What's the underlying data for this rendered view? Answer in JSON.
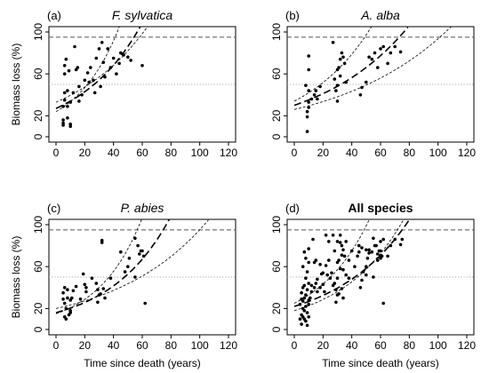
{
  "chart_data": [
    {
      "type": "scatter",
      "panel_label": "(a)",
      "title": "F. sylvatica",
      "title_style": "italic",
      "xlabel": "",
      "ylabel": "Biomass loss (%)",
      "xlim": [
        0,
        120
      ],
      "ylim": [
        0,
        100
      ],
      "xticks": [
        "0",
        "20",
        "40",
        "60",
        "80",
        "100",
        "120"
      ],
      "yticks": [
        "0",
        "20",
        "60",
        "100"
      ],
      "ytick_values": [
        0,
        20,
        60,
        100
      ],
      "reference_lines": [
        {
          "y": 95,
          "style": "dashed"
        },
        {
          "y": 50,
          "style": "dotted"
        }
      ],
      "curves": [
        {
          "style": "short-dashed",
          "a": 33,
          "b": 0.0182
        },
        {
          "style": "long-dashed",
          "a": 27,
          "b": 0.0232
        },
        {
          "style": "short-dashed",
          "a": 24,
          "b": 0.0335
        }
      ],
      "points": [
        [
          5,
          29
        ],
        [
          5,
          16
        ],
        [
          5,
          13
        ],
        [
          5,
          11
        ],
        [
          6,
          35
        ],
        [
          6,
          42
        ],
        [
          6,
          60
        ],
        [
          6,
          68
        ],
        [
          7,
          74
        ],
        [
          8,
          44
        ],
        [
          8,
          29
        ],
        [
          8,
          18
        ],
        [
          9,
          63
        ],
        [
          10,
          12
        ],
        [
          10,
          10
        ],
        [
          10,
          33
        ],
        [
          12,
          42
        ],
        [
          13,
          86
        ],
        [
          14,
          64
        ],
        [
          15,
          66
        ],
        [
          16,
          48
        ],
        [
          16,
          34
        ],
        [
          18,
          40
        ],
        [
          20,
          54
        ],
        [
          22,
          61
        ],
        [
          23,
          52
        ],
        [
          24,
          66
        ],
        [
          26,
          54
        ],
        [
          27,
          42
        ],
        [
          28,
          75
        ],
        [
          30,
          84
        ],
        [
          31,
          48
        ],
        [
          32,
          90
        ],
        [
          33,
          71
        ],
        [
          34,
          57
        ],
        [
          36,
          84
        ],
        [
          38,
          66
        ],
        [
          40,
          75
        ],
        [
          42,
          60
        ],
        [
          44,
          70
        ],
        [
          45,
          80
        ],
        [
          47,
          78
        ],
        [
          50,
          76
        ],
        [
          52,
          73
        ],
        [
          60,
          68
        ]
      ]
    },
    {
      "type": "scatter",
      "panel_label": "(b)",
      "title": "A. alba",
      "title_style": "italic",
      "xlabel": "",
      "ylabel": "",
      "xlim": [
        0,
        120
      ],
      "ylim": [
        0,
        100
      ],
      "xticks": [
        "0",
        "20",
        "40",
        "60",
        "80",
        "100",
        "120"
      ],
      "yticks": [
        "0",
        "20",
        "60",
        "100"
      ],
      "ytick_values": [
        0,
        20,
        60,
        100
      ],
      "reference_lines": [
        {
          "y": 95,
          "style": "dashed"
        },
        {
          "y": 50,
          "style": "dotted"
        }
      ],
      "curves": [
        {
          "style": "short-dashed",
          "a": 26,
          "b": 0.0128
        },
        {
          "style": "long-dashed",
          "a": 30,
          "b": 0.0158
        },
        {
          "style": "short-dashed",
          "a": 34,
          "b": 0.021
        }
      ],
      "points": [
        [
          8,
          49
        ],
        [
          9,
          5
        ],
        [
          9,
          19
        ],
        [
          9,
          24
        ],
        [
          10,
          28
        ],
        [
          10,
          33
        ],
        [
          10,
          44
        ],
        [
          10,
          64
        ],
        [
          10,
          77
        ],
        [
          12,
          36
        ],
        [
          14,
          40
        ],
        [
          15,
          44
        ],
        [
          16,
          36
        ],
        [
          18,
          48
        ],
        [
          27,
          90
        ],
        [
          28,
          55
        ],
        [
          29,
          44
        ],
        [
          30,
          49
        ],
        [
          30,
          34
        ],
        [
          30,
          64
        ],
        [
          31,
          66
        ],
        [
          32,
          58
        ],
        [
          32,
          74
        ],
        [
          33,
          80
        ],
        [
          34,
          76
        ],
        [
          35,
          70
        ],
        [
          36,
          52
        ],
        [
          46,
          40
        ],
        [
          47,
          47
        ],
        [
          50,
          52
        ],
        [
          52,
          76
        ],
        [
          54,
          74
        ],
        [
          56,
          80
        ],
        [
          58,
          66
        ],
        [
          60,
          84
        ],
        [
          62,
          86
        ],
        [
          65,
          70
        ],
        [
          67,
          80
        ],
        [
          70,
          86
        ],
        [
          74,
          81
        ]
      ]
    },
    {
      "type": "scatter",
      "panel_label": "(c)",
      "title": "P. abies",
      "title_style": "italic",
      "xlabel": "Time since death (years)",
      "ylabel": "Biomass loss (%)",
      "xlim": [
        0,
        120
      ],
      "ylim": [
        0,
        100
      ],
      "xticks": [
        "0",
        "20",
        "40",
        "60",
        "80",
        "100",
        "120"
      ],
      "yticks": [
        "0",
        "20",
        "60",
        "100"
      ],
      "ytick_values": [
        0,
        20,
        60,
        100
      ],
      "reference_lines": [
        {
          "y": 95,
          "style": "dashed"
        },
        {
          "y": 50,
          "style": "dotted"
        }
      ],
      "curves": [
        {
          "style": "short-dashed",
          "a": 20,
          "b": 0.0156
        },
        {
          "style": "long-dashed",
          "a": 16,
          "b": 0.0239
        },
        {
          "style": "short-dashed",
          "a": 15,
          "b": 0.0327
        }
      ],
      "points": [
        [
          5,
          29
        ],
        [
          5,
          35
        ],
        [
          6,
          12
        ],
        [
          6,
          25
        ],
        [
          6,
          40
        ],
        [
          7,
          10
        ],
        [
          7,
          20
        ],
        [
          8,
          30
        ],
        [
          8,
          38
        ],
        [
          9,
          14
        ],
        [
          10,
          16
        ],
        [
          10,
          18
        ],
        [
          10,
          28
        ],
        [
          11,
          30
        ],
        [
          12,
          37
        ],
        [
          14,
          41
        ],
        [
          17,
          29
        ],
        [
          19,
          53
        ],
        [
          20,
          43
        ],
        [
          21,
          36
        ],
        [
          21,
          40
        ],
        [
          25,
          49
        ],
        [
          28,
          44
        ],
        [
          29,
          26
        ],
        [
          29,
          38
        ],
        [
          30,
          33
        ],
        [
          31,
          34
        ],
        [
          32,
          83
        ],
        [
          32,
          85
        ],
        [
          33,
          39
        ],
        [
          34,
          30
        ],
        [
          38,
          49
        ],
        [
          45,
          74
        ],
        [
          48,
          55
        ],
        [
          50,
          60
        ],
        [
          51,
          68
        ],
        [
          55,
          50
        ],
        [
          55,
          87
        ],
        [
          57,
          80
        ],
        [
          58,
          72
        ],
        [
          59,
          75
        ],
        [
          60,
          75
        ],
        [
          61,
          70
        ],
        [
          62,
          25
        ]
      ]
    },
    {
      "type": "scatter",
      "panel_label": "(d)",
      "title": "All species",
      "title_style": "bold",
      "xlabel": "Time since death (years)",
      "ylabel": "",
      "xlim": [
        0,
        120
      ],
      "ylim": [
        0,
        100
      ],
      "xticks": [
        "0",
        "20",
        "40",
        "60",
        "80",
        "100",
        "120"
      ],
      "yticks": [
        "0",
        "20",
        "60",
        "100"
      ],
      "ytick_values": [
        0,
        20,
        60,
        100
      ],
      "reference_lines": [
        {
          "y": 95,
          "style": "dashed"
        },
        {
          "y": 50,
          "style": "dotted"
        }
      ],
      "curves": [
        {
          "style": "short-dashed",
          "a": 18,
          "b": 0.0232
        },
        {
          "style": "long-dashed",
          "a": 22,
          "b": 0.0195
        },
        {
          "style": "short-dashed",
          "a": 25,
          "b": 0.0275
        }
      ],
      "points": [
        [
          4,
          10
        ],
        [
          4,
          24
        ],
        [
          5,
          5
        ],
        [
          5,
          14
        ],
        [
          5,
          29
        ],
        [
          5,
          35
        ],
        [
          6,
          12
        ],
        [
          6,
          20
        ],
        [
          6,
          27
        ],
        [
          6,
          40
        ],
        [
          6,
          60
        ],
        [
          7,
          10
        ],
        [
          7,
          18
        ],
        [
          7,
          30
        ],
        [
          7,
          42
        ],
        [
          7,
          74
        ],
        [
          8,
          8
        ],
        [
          8,
          22
        ],
        [
          8,
          33
        ],
        [
          8,
          49
        ],
        [
          8,
          68
        ],
        [
          9,
          4
        ],
        [
          9,
          16
        ],
        [
          9,
          38
        ],
        [
          9,
          55
        ],
        [
          10,
          12
        ],
        [
          10,
          24
        ],
        [
          10,
          28
        ],
        [
          10,
          44
        ],
        [
          10,
          64
        ],
        [
          10,
          77
        ],
        [
          11,
          30
        ],
        [
          12,
          36
        ],
        [
          12,
          42
        ],
        [
          13,
          86
        ],
        [
          14,
          40
        ],
        [
          14,
          64
        ],
        [
          15,
          44
        ],
        [
          15,
          66
        ],
        [
          16,
          36
        ],
        [
          16,
          48
        ],
        [
          18,
          40
        ],
        [
          18,
          62
        ],
        [
          19,
          53
        ],
        [
          20,
          43
        ],
        [
          20,
          54
        ],
        [
          21,
          36
        ],
        [
          22,
          61
        ],
        [
          22,
          90
        ],
        [
          23,
          52
        ],
        [
          24,
          66
        ],
        [
          24,
          84
        ],
        [
          25,
          49
        ],
        [
          26,
          54
        ],
        [
          27,
          42
        ],
        [
          27,
          90
        ],
        [
          28,
          44
        ],
        [
          28,
          75
        ],
        [
          29,
          26
        ],
        [
          29,
          38
        ],
        [
          30,
          33
        ],
        [
          30,
          49
        ],
        [
          30,
          64
        ],
        [
          30,
          84
        ],
        [
          31,
          34
        ],
        [
          31,
          66
        ],
        [
          32,
          58
        ],
        [
          32,
          83
        ],
        [
          32,
          90
        ],
        [
          33,
          39
        ],
        [
          33,
          71
        ],
        [
          33,
          80
        ],
        [
          34,
          30
        ],
        [
          34,
          57
        ],
        [
          34,
          76
        ],
        [
          35,
          70
        ],
        [
          36,
          52
        ],
        [
          36,
          84
        ],
        [
          38,
          49
        ],
        [
          38,
          66
        ],
        [
          40,
          75
        ],
        [
          42,
          60
        ],
        [
          44,
          70
        ],
        [
          45,
          74
        ],
        [
          45,
          80
        ],
        [
          46,
          40
        ],
        [
          47,
          47
        ],
        [
          47,
          78
        ],
        [
          48,
          55
        ],
        [
          50,
          52
        ],
        [
          50,
          60
        ],
        [
          50,
          76
        ],
        [
          51,
          68
        ],
        [
          52,
          73
        ],
        [
          52,
          76
        ],
        [
          54,
          74
        ],
        [
          55,
          50
        ],
        [
          55,
          87
        ],
        [
          56,
          80
        ],
        [
          57,
          80
        ],
        [
          58,
          66
        ],
        [
          58,
          72
        ],
        [
          59,
          75
        ],
        [
          60,
          68
        ],
        [
          60,
          75
        ],
        [
          60,
          84
        ],
        [
          61,
          70
        ],
        [
          62,
          25
        ],
        [
          62,
          86
        ],
        [
          65,
          70
        ],
        [
          67,
          80
        ],
        [
          70,
          86
        ],
        [
          74,
          81
        ],
        [
          75,
          86
        ]
      ]
    }
  ]
}
